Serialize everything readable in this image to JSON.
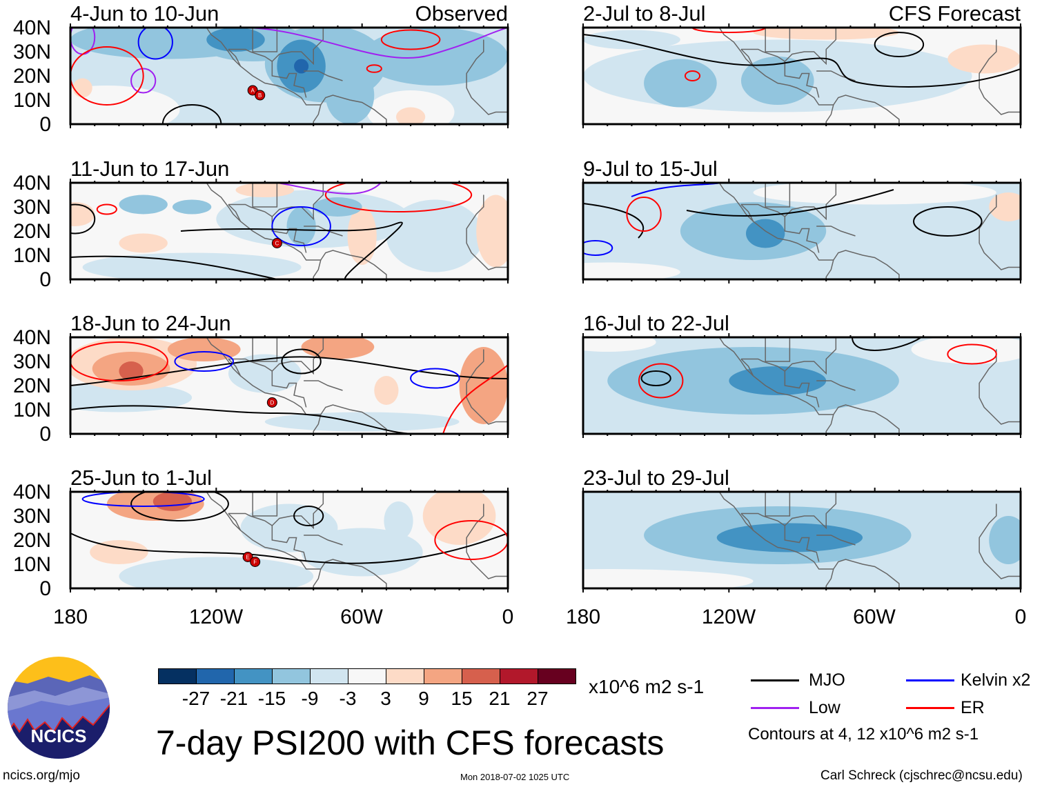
{
  "panels": [
    {
      "title": "4-Jun to 10-Jun",
      "tag": "Observed",
      "storms": [
        "A",
        "B"
      ]
    },
    {
      "title": "11-Jun to 17-Jun",
      "storms": [
        "C"
      ]
    },
    {
      "title": "18-Jun to 24-Jun",
      "storms": [
        "D"
      ]
    },
    {
      "title": "25-Jun to 1-Jul",
      "storms": [
        "E",
        "F"
      ]
    },
    {
      "title": "2-Jul to 8-Jul",
      "tag": "CFS Forecast"
    },
    {
      "title": "9-Jul to 15-Jul"
    },
    {
      "title": "16-Jul to 22-Jul"
    },
    {
      "title": "23-Jul to 29-Jul"
    }
  ],
  "lat_labels": [
    "40N",
    "30N",
    "20N",
    "10N",
    "0"
  ],
  "lon_labels": [
    "180",
    "120W",
    "60W",
    "0"
  ],
  "colorbar": {
    "colors": [
      "#053061",
      "#2166ac",
      "#4393c3",
      "#92c5de",
      "#d1e5f0",
      "#f7f7f7",
      "#fddbc7",
      "#f4a582",
      "#d6604d",
      "#b2182b",
      "#67001f"
    ],
    "labels": [
      "-27",
      "-21",
      "-15",
      "-9",
      "-3",
      "3",
      "9",
      "15",
      "21",
      "27"
    ],
    "units": "x10^6 m2 s-1"
  },
  "legend": {
    "items": [
      {
        "label": "MJO",
        "color": "#000000"
      },
      {
        "label": "Kelvin x2",
        "color": "#0000ff"
      },
      {
        "label": "Low",
        "color": "#a020f0"
      },
      {
        "label": "ER",
        "color": "#ff0000"
      }
    ],
    "note": "Contours at 4, 12 x10^6 m2 s-1"
  },
  "logo": {
    "text": "NCICS"
  },
  "title": "7-day PSI200 with CFS forecasts",
  "footer": {
    "left": "ncics.org/mjo",
    "center": "Mon 2018-07-02 1025 UTC",
    "right": "Carl Schreck (cjschrec@ncsu.edu)"
  }
}
